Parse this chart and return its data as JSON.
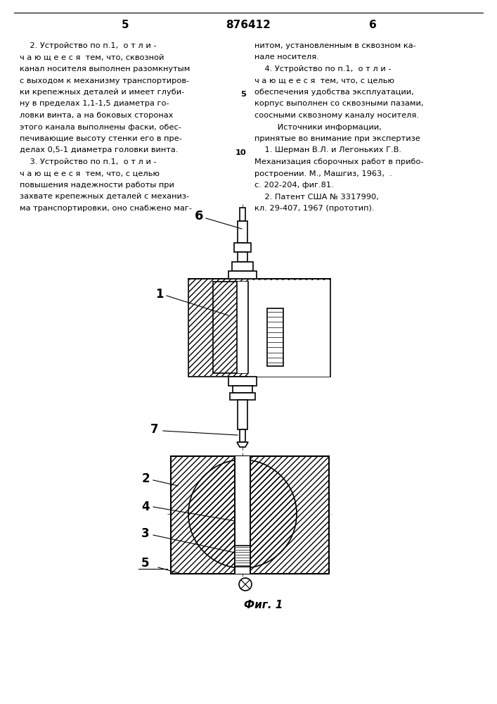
{
  "bg_color": "#ffffff",
  "page_color": "#ffffff",
  "header_page_left": "5",
  "header_patent": "876412",
  "header_page_right": "6",
  "left_column_text": [
    "    2. Устройство по п.1,  о т л и -",
    "ч а ю щ е е с я  тем, что, сквозной",
    "канал носителя выполнен разомкнутым",
    "с выходом к механизму транспортиров-",
    "ки крепежных деталей и имеет глуби-",
    "ну в пределах 1,1-1,5 диаметра го-",
    "ловки винта, а на боковых сторонах",
    "этого канала выполнены фаски, обес-",
    "печивающие высоту стенки его в пре-",
    "делах 0,5-1 диаметра головки винта.",
    "    3. Устройство по п.1,  о т л и -",
    "ч а ю щ е е с я  тем, что, с целью",
    "повышения надежности работы при",
    "захвате крепежных деталей с механиз-",
    "ма транспортировки, оно снабжено маг-"
  ],
  "right_column_text": [
    "нитом, установленным в сквозном ка-",
    "нале носителя.",
    "    4. Устройство по п.1,  о т л и -",
    "ч а ю щ е е с я  тем, что, с целью",
    "обеспечения удобства эксплуатации,",
    "корпус выполнен со сквозными пазами,",
    "соосными сквозному каналу носителя.",
    "         Источники информации,",
    "принятые во внимание при экспертизе",
    "    1. Шерман В.Л. и Легоньких Г.В.",
    "Механизация сборочных работ в прибо-",
    "ростроении. М., Машгиз, 1963,  .",
    "с. 202-204, фиг.81.",
    "    2. Патент США № 3317990,",
    "кл. 29-407, 1967 (прототип)."
  ],
  "fig_label": "Фиг. 1"
}
